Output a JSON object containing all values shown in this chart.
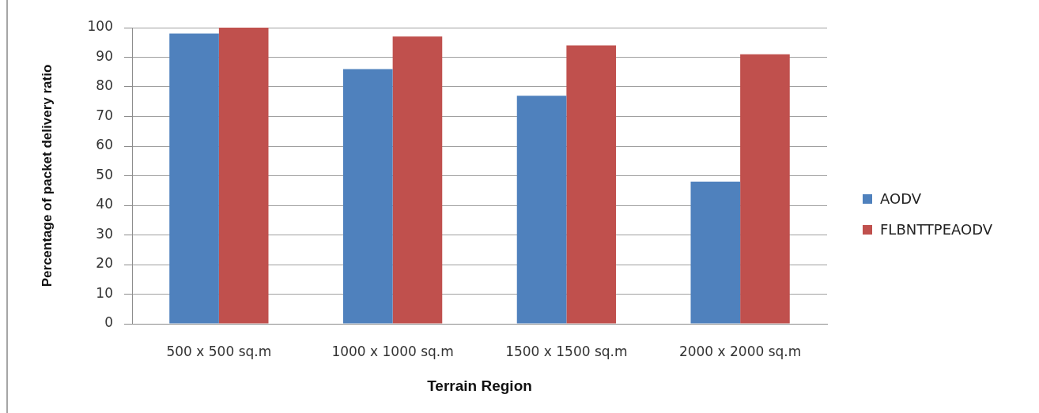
{
  "chart_data": {
    "type": "bar",
    "xlabel": "Terrain Region",
    "ylabel": "Percentage of packet delivery ratio",
    "categories": [
      "500 x 500 sq.m",
      "1000 x 1000 sq.m",
      "1500 x 1500 sq.m",
      "2000 x 2000 sq.m"
    ],
    "series": [
      {
        "name": "AODV",
        "color": "#4f81bd",
        "values": [
          98,
          86,
          77,
          48
        ]
      },
      {
        "name": "FLBNTTPEAODV",
        "color": "#c0504d",
        "values": [
          100,
          97,
          94,
          91
        ]
      }
    ],
    "ylim": [
      0,
      100
    ],
    "yticks": [
      0,
      10,
      20,
      30,
      40,
      50,
      60,
      70,
      80,
      90,
      100
    ],
    "grid": "y",
    "legend": "right"
  }
}
